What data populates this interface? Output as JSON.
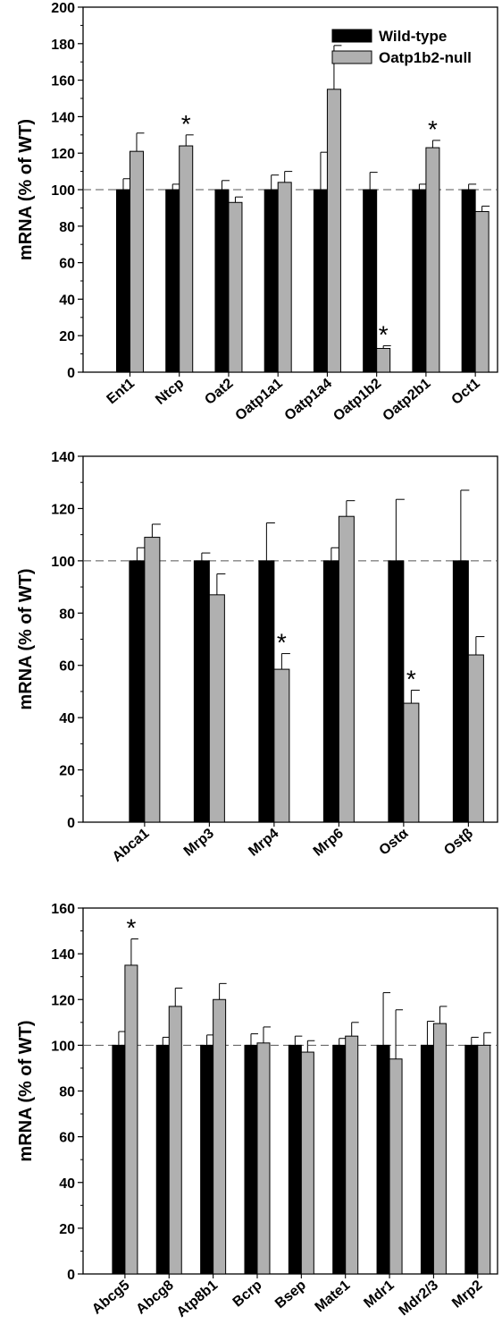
{
  "colors": {
    "wild_type": "#000000",
    "null": "#b0b0b0",
    "reference_line": "#555555"
  },
  "chart_data": [
    {
      "type": "bar",
      "ylabel": "mRNA (% of WT)",
      "ylim": [
        0,
        200
      ],
      "yticks": [
        0,
        20,
        40,
        60,
        80,
        100,
        120,
        140,
        160,
        180,
        200
      ],
      "reference_line": 100,
      "legend": {
        "position": "top-right",
        "entries": [
          "Wild-type",
          "Oatp1b2-null"
        ]
      },
      "categories": [
        "Ent1",
        "Ntcp",
        "Oat2",
        "Oatp1a1",
        "Oatp1a4",
        "Oatp1b2",
        "Oatp2b1",
        "Oct1"
      ],
      "series": [
        {
          "name": "Wild-type",
          "values": [
            100,
            100,
            100,
            100,
            100,
            100,
            100,
            100
          ],
          "errors": [
            6,
            3,
            5,
            8,
            20.5,
            9.5,
            3,
            3
          ]
        },
        {
          "name": "Oatp1b2-null",
          "values": [
            121,
            124,
            93,
            104,
            155,
            13,
            123,
            88
          ],
          "errors": [
            10,
            6,
            3,
            6,
            24,
            1.5,
            4,
            3
          ]
        }
      ],
      "significant": [
        [
          1,
          1
        ],
        [
          1,
          5
        ],
        [
          1,
          6
        ]
      ]
    },
    {
      "type": "bar",
      "ylabel": "mRNA (% of WT)",
      "ylim": [
        0,
        140
      ],
      "yticks": [
        0,
        20,
        40,
        60,
        80,
        100,
        120,
        140
      ],
      "reference_line": 100,
      "categories": [
        "Abca1",
        "Mrp3",
        "Mrp4",
        "Mrp6",
        "Ostα",
        "Ostβ"
      ],
      "series": [
        {
          "name": "Wild-type",
          "values": [
            100,
            100,
            100,
            100,
            100,
            100
          ],
          "errors": [
            5,
            3,
            14.5,
            5,
            23.5,
            27
          ]
        },
        {
          "name": "Oatp1b2-null",
          "values": [
            109,
            87,
            58.5,
            117,
            45.5,
            64
          ],
          "errors": [
            5,
            8,
            6,
            6,
            5,
            7
          ]
        }
      ],
      "significant": [
        [
          1,
          2
        ],
        [
          1,
          4
        ]
      ]
    },
    {
      "type": "bar",
      "ylabel": "mRNA (% of WT)",
      "ylim": [
        0,
        160
      ],
      "yticks": [
        0,
        20,
        40,
        60,
        80,
        100,
        120,
        140,
        160
      ],
      "reference_line": 100,
      "categories": [
        "Abcg5",
        "Abcg8",
        "Atp8b1",
        "Bcrp",
        "Bsep",
        "Mate1",
        "Mdr1",
        "Mdr2/3",
        "Mrp2"
      ],
      "series": [
        {
          "name": "Wild-type",
          "values": [
            100,
            100,
            100,
            100,
            100,
            100,
            100,
            100,
            100
          ],
          "errors": [
            6,
            3.5,
            4.5,
            5,
            4,
            3,
            23,
            10.5,
            3.5
          ]
        },
        {
          "name": "Oatp1b2-null",
          "values": [
            135,
            117,
            120,
            101,
            97,
            104,
            94,
            109.5,
            100
          ],
          "errors": [
            11.5,
            8,
            7,
            7,
            5,
            6,
            21.5,
            7.5,
            5.5
          ]
        }
      ],
      "significant": [
        [
          1,
          0
        ]
      ]
    }
  ]
}
